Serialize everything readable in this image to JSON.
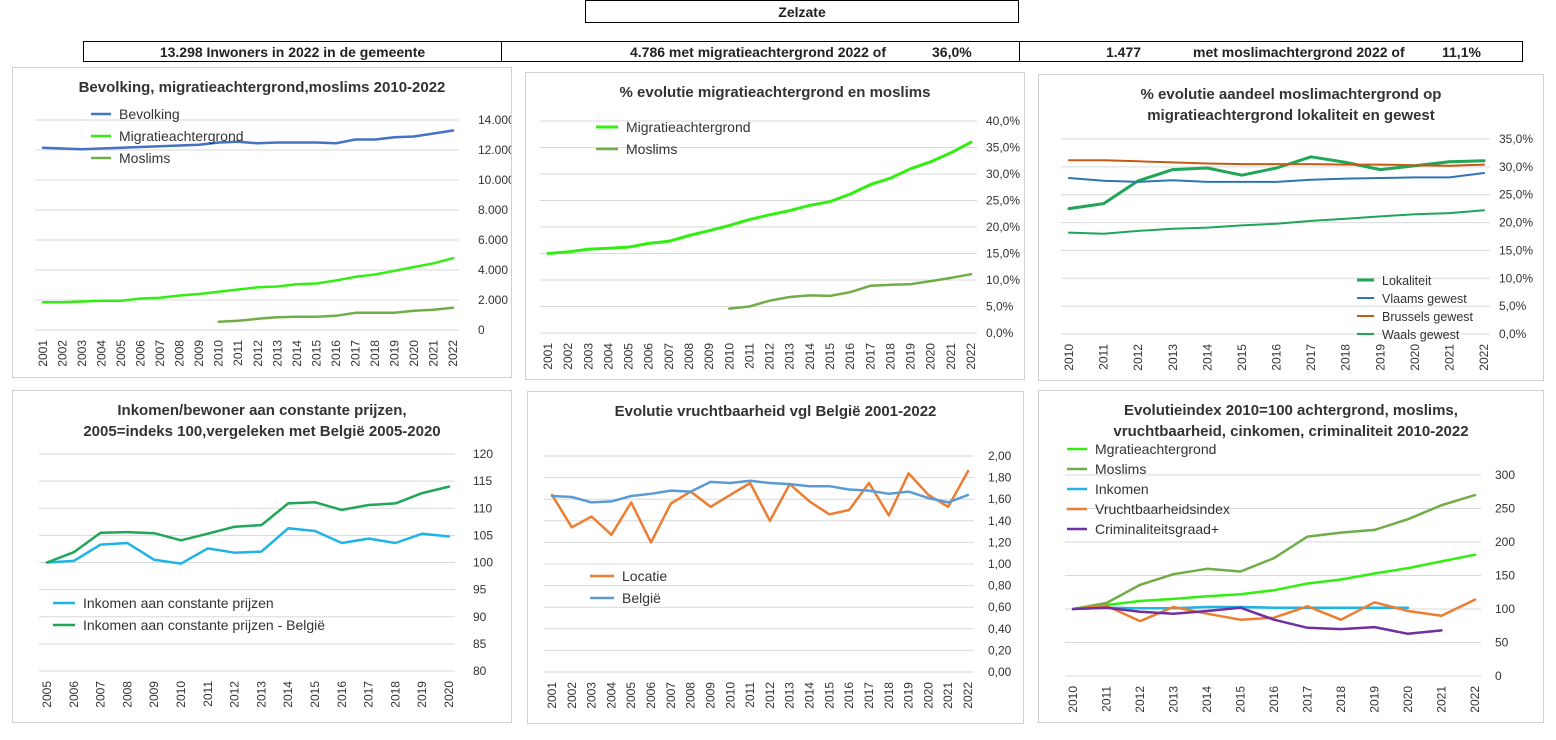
{
  "header": {
    "title": "Zelzate",
    "stat1": "13.298 Inwoners in 2022 in de gemeente",
    "stat2_value": "4.786 met migratieachtergrond 2022 of",
    "stat2_pct": "36,0%",
    "stat3_value": "1.477",
    "stat3_label": "met moslimachtergrond 2022 of",
    "stat3_pct": "11,1%"
  },
  "chart_data": [
    {
      "id": "c1",
      "type": "line",
      "title": [
        "Bevolking, migratieachtergrond,moslims 2010-2022"
      ],
      "x": [
        "2001",
        "2002",
        "2003",
        "2004",
        "2005",
        "2006",
        "2007",
        "2008",
        "2009",
        "2010",
        "2011",
        "2012",
        "2013",
        "2014",
        "2015",
        "2016",
        "2017",
        "2018",
        "2019",
        "2020",
        "2021",
        "2022"
      ],
      "ylim": [
        0,
        14000
      ],
      "yticks": [
        0,
        2000,
        4000,
        6000,
        8000,
        10000,
        12000,
        14000
      ],
      "ytick_labels": [
        "0",
        "2.000",
        "4.000",
        "6.000",
        "8.000",
        "10.000",
        "12.000",
        "14.000"
      ],
      "series": [
        {
          "name": "Bevolking",
          "color": "#4472C4",
          "width": 2.5,
          "values": [
            12150,
            12100,
            12050,
            12100,
            12150,
            12200,
            12250,
            12300,
            12350,
            12500,
            12550,
            12450,
            12500,
            12500,
            12500,
            12450,
            12700,
            12700,
            12850,
            12900,
            13100,
            13298
          ]
        },
        {
          "name": "Migratieachtergrond",
          "color": "#33EE11",
          "width": 2.5,
          "values": [
            1850,
            1850,
            1900,
            1950,
            1950,
            2100,
            2150,
            2300,
            2400,
            2550,
            2700,
            2850,
            2900,
            3050,
            3100,
            3300,
            3550,
            3700,
            3950,
            4200,
            4450,
            4786
          ]
        },
        {
          "name": "Moslims",
          "color": "#70AD47",
          "width": 2.5,
          "values": [
            null,
            null,
            null,
            null,
            null,
            null,
            null,
            null,
            null,
            550,
            620,
            750,
            850,
            880,
            880,
            950,
            1150,
            1150,
            1150,
            1280,
            1350,
            1477
          ]
        }
      ]
    },
    {
      "id": "c2",
      "type": "line",
      "title": [
        "% evolutie migratieachtergrond  en moslims"
      ],
      "x": [
        "2001",
        "2002",
        "2003",
        "2004",
        "2005",
        "2006",
        "2007",
        "2008",
        "2009",
        "2010",
        "2011",
        "2012",
        "2013",
        "2014",
        "2015",
        "2016",
        "2017",
        "2018",
        "2019",
        "2020",
        "2021",
        "2022"
      ],
      "ylim": [
        0,
        40
      ],
      "yticks": [
        0,
        5,
        10,
        15,
        20,
        25,
        30,
        35,
        40
      ],
      "ytick_labels": [
        "0,0%",
        "5,0%",
        "10,0%",
        "15,0%",
        "20,0%",
        "25,0%",
        "30,0%",
        "35,0%",
        "40,0%"
      ],
      "series": [
        {
          "name": "Migratieachtergrond",
          "color": "#33EE11",
          "width": 3,
          "values": [
            15.0,
            15.3,
            15.8,
            16.0,
            16.2,
            16.9,
            17.3,
            18.4,
            19.3,
            20.3,
            21.4,
            22.3,
            23.1,
            24.1,
            24.8,
            26.2,
            28.0,
            29.2,
            31.0,
            32.3,
            34.0,
            36.0
          ]
        },
        {
          "name": "Moslims",
          "color": "#70AD47",
          "width": 2.5,
          "values": [
            null,
            null,
            null,
            null,
            null,
            null,
            null,
            null,
            null,
            4.6,
            5.0,
            6.1,
            6.8,
            7.1,
            7.0,
            7.7,
            8.9,
            9.1,
            9.2,
            9.8,
            10.4,
            11.1
          ]
        }
      ]
    },
    {
      "id": "c3",
      "type": "line",
      "title": [
        "% evolutie aandeel moslimachtergrond op",
        "migratieachtergrond lokaliteit en gewest"
      ],
      "x": [
        "2010",
        "2011",
        "2012",
        "2013",
        "2014",
        "2015",
        "2016",
        "2017",
        "2018",
        "2019",
        "2020",
        "2021",
        "2022"
      ],
      "ylim": [
        0,
        35
      ],
      "yticks": [
        0,
        5,
        10,
        15,
        20,
        25,
        30,
        35
      ],
      "ytick_labels": [
        "0,0%",
        "5,0%",
        "10,0%",
        "15,0%",
        "20,0%",
        "25,0%",
        "30,0%",
        "35,0%"
      ],
      "series": [
        {
          "name": "Lokaliteit",
          "color": "#1FA656",
          "width": 3,
          "values": [
            22.5,
            23.4,
            27.5,
            29.5,
            29.8,
            28.5,
            29.8,
            31.8,
            30.8,
            29.5,
            30.2,
            30.9,
            31.1
          ]
        },
        {
          "name": "Vlaams gewest",
          "color": "#2E75B6",
          "width": 2,
          "values": [
            28.0,
            27.5,
            27.3,
            27.6,
            27.3,
            27.3,
            27.3,
            27.7,
            27.9,
            28.0,
            28.1,
            28.1,
            28.9
          ]
        },
        {
          "name": "Brussels gewest",
          "color": "#C55A11",
          "width": 2,
          "values": [
            31.2,
            31.2,
            31.0,
            30.8,
            30.6,
            30.5,
            30.5,
            30.5,
            30.4,
            30.4,
            30.3,
            30.2,
            30.4
          ]
        },
        {
          "name": "Waals gewest",
          "color": "#1FA656",
          "width": 2,
          "values": [
            18.2,
            18.0,
            18.5,
            18.9,
            19.1,
            19.5,
            19.8,
            20.3,
            20.7,
            21.1,
            21.5,
            21.7,
            22.2
          ]
        }
      ]
    },
    {
      "id": "c4",
      "type": "line",
      "title": [
        "Inkomen/bewoner aan constante prijzen,",
        "2005=indeks 100,vergeleken met België 2005-2020"
      ],
      "x": [
        "2005",
        "2006",
        "2007",
        "2008",
        "2009",
        "2010",
        "2011",
        "2012",
        "2013",
        "2014",
        "2015",
        "2016",
        "2017",
        "2018",
        "2019",
        "2020"
      ],
      "ylim": [
        80,
        120
      ],
      "yticks": [
        80,
        85,
        90,
        95,
        100,
        105,
        110,
        115,
        120
      ],
      "ytick_labels": [
        "80",
        "85",
        "90",
        "95",
        "100",
        "105",
        "110",
        "115",
        "120"
      ],
      "series": [
        {
          "name": "Inkomen aan constante prijzen",
          "color": "#1EB4E6",
          "width": 2.5,
          "values": [
            100.0,
            100.3,
            103.3,
            103.6,
            100.5,
            99.8,
            102.6,
            101.8,
            102.0,
            106.3,
            105.8,
            103.6,
            104.4,
            103.6,
            105.3,
            104.8
          ]
        },
        {
          "name": "Inkomen aan constante prijzen - België",
          "color": "#1FA656",
          "width": 2.5,
          "values": [
            100.0,
            101.9,
            105.5,
            105.6,
            105.4,
            104.1,
            105.3,
            106.6,
            106.9,
            110.9,
            111.1,
            109.7,
            110.6,
            110.9,
            112.8,
            114.0
          ]
        }
      ]
    },
    {
      "id": "c5",
      "type": "line",
      "title": [
        "Evolutie vruchtbaarheid vgl België 2001-2022"
      ],
      "x": [
        "2001",
        "2002",
        "2003",
        "2004",
        "2005",
        "2006",
        "2007",
        "2008",
        "2009",
        "2010",
        "2011",
        "2012",
        "2013",
        "2014",
        "2015",
        "2016",
        "2017",
        "2018",
        "2019",
        "2020",
        "2021",
        "2022"
      ],
      "ylim": [
        0,
        2
      ],
      "yticks": [
        0,
        0.2,
        0.4,
        0.6,
        0.8,
        1.0,
        1.2,
        1.4,
        1.6,
        1.8,
        2.0
      ],
      "ytick_labels": [
        "0,00",
        "0,20",
        "0,40",
        "0,60",
        "0,80",
        "1,00",
        "1,20",
        "1,40",
        "1,60",
        "1,80",
        "2,00"
      ],
      "series": [
        {
          "name": "Locatie",
          "color": "#ED7D31",
          "width": 2.5,
          "values": [
            1.64,
            1.34,
            1.44,
            1.27,
            1.57,
            1.2,
            1.56,
            1.67,
            1.53,
            1.64,
            1.75,
            1.4,
            1.74,
            1.58,
            1.46,
            1.5,
            1.75,
            1.45,
            1.84,
            1.64,
            1.53,
            1.86
          ]
        },
        {
          "name": "België",
          "color": "#5B9BD5",
          "width": 2.5,
          "values": [
            1.63,
            1.62,
            1.57,
            1.58,
            1.63,
            1.65,
            1.68,
            1.67,
            1.76,
            1.75,
            1.77,
            1.75,
            1.74,
            1.72,
            1.72,
            1.69,
            1.68,
            1.65,
            1.67,
            1.61,
            1.57,
            1.64
          ]
        }
      ]
    },
    {
      "id": "c6",
      "type": "line",
      "title": [
        "Evolutieindex 2010=100 achtergrond, moslims,",
        "vruchtbaarheid, cinkomen, criminaliteit  2010-2022"
      ],
      "x": [
        "2010",
        "2011",
        "2012",
        "2013",
        "2014",
        "2015",
        "2016",
        "2017",
        "2018",
        "2019",
        "2020",
        "2021",
        "2022"
      ],
      "ylim": [
        0,
        300
      ],
      "yticks": [
        0,
        50,
        100,
        150,
        200,
        250,
        300
      ],
      "ytick_labels": [
        "0",
        "50",
        "100",
        "150",
        "200",
        "250",
        "300"
      ],
      "series": [
        {
          "name": "Mgratieachtergrond",
          "color": "#33EE11",
          "width": 2.5,
          "values": [
            100,
            106,
            112,
            115,
            119,
            122,
            128,
            138,
            144,
            153,
            161,
            171,
            181
          ]
        },
        {
          "name": "Moslims",
          "color": "#70AD47",
          "width": 2.5,
          "values": [
            100,
            109,
            136,
            152,
            160,
            156,
            176,
            208,
            214,
            218,
            234,
            255,
            270
          ]
        },
        {
          "name": "Inkomen",
          "color": "#1EB4E6",
          "width": 2.5,
          "values": [
            100,
            102,
            101,
            101,
            103,
            103,
            102,
            102,
            102,
            102,
            102,
            null,
            null
          ]
        },
        {
          "name": "Vruchtbaarheidsindex",
          "color": "#ED7D31",
          "width": 2.5,
          "values": [
            100,
            105,
            82,
            103,
            93,
            84,
            87,
            104,
            84,
            110,
            97,
            90,
            114
          ]
        },
        {
          "name": "Criminaliteitsgraad+",
          "color": "#7030A0",
          "width": 2.5,
          "values": [
            100,
            102,
            96,
            93,
            97,
            102,
            84,
            72,
            70,
            73,
            63,
            68,
            null
          ]
        }
      ]
    }
  ]
}
